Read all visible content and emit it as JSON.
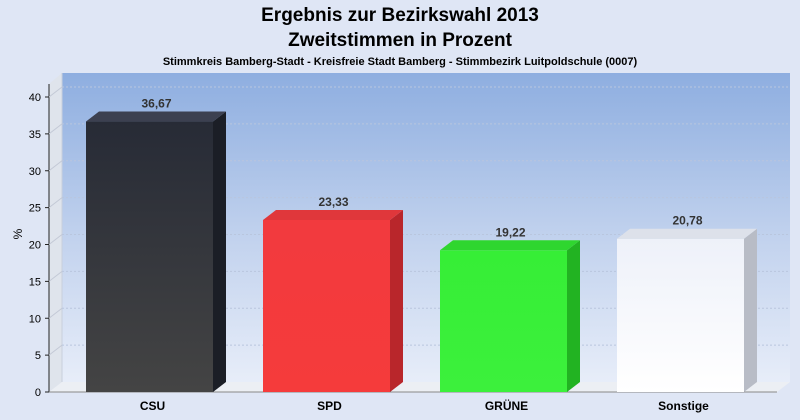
{
  "chart_data": {
    "type": "bar",
    "title_line1": "Ergebnis zur Bezirkswahl 2013",
    "title_line2": "Zweitstimmen in Prozent",
    "subtitle": "Stimmkreis Bamberg-Stadt - Kreisfreie Stadt Bamberg - Stimmbezirk Luitpoldschule (0007)",
    "ylabel": "%",
    "ylim": [
      0,
      40
    ],
    "yticks": [
      "0",
      "5",
      "10",
      "15",
      "20",
      "25",
      "30",
      "35",
      "40"
    ],
    "categories": [
      "CSU",
      "SPD",
      "GRÜNE",
      "Sonstige"
    ],
    "values": [
      36.67,
      23.33,
      19.22,
      20.78
    ],
    "value_labels": [
      "36,67",
      "23,33",
      "19,22",
      "20,78"
    ],
    "colors": [
      "#2f323c",
      "#f23a3e",
      "#39ee39",
      "#f7f8fc"
    ],
    "grid": true
  }
}
